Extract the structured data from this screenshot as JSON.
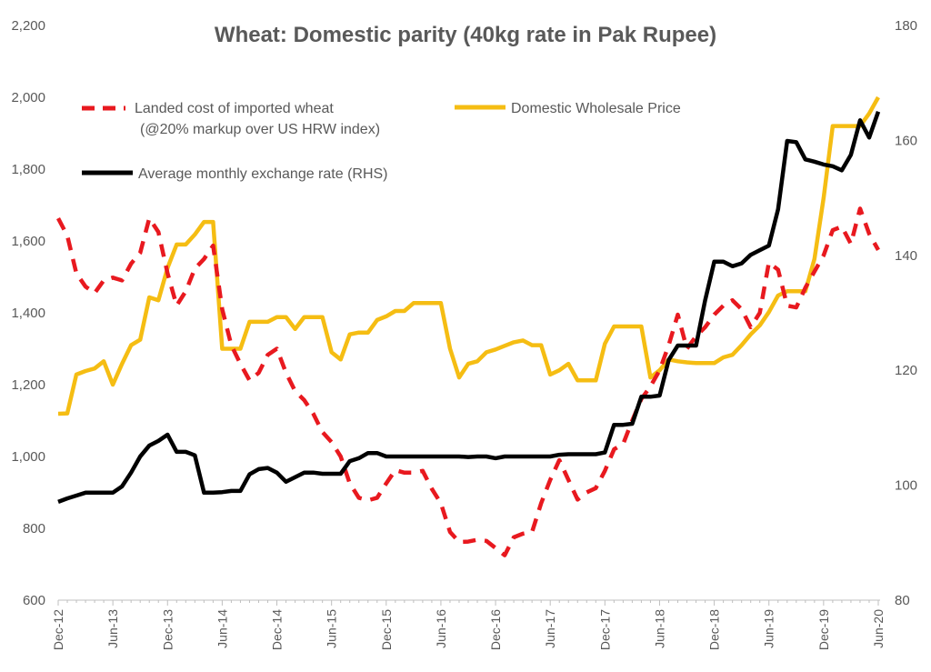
{
  "chart_data": {
    "type": "line",
    "title": "Wheat: Domestic parity (40kg rate in Pak Rupee)",
    "xlabel": "",
    "ylabel": "",
    "ylim": [
      600,
      2200
    ],
    "y2lim": [
      80,
      180
    ],
    "yticks": [
      "600",
      "800",
      "1,000",
      "1,200",
      "1,400",
      "1,600",
      "1,800",
      "2,000",
      "2,200"
    ],
    "y2ticks": [
      "80",
      "100",
      "120",
      "140",
      "160",
      "180"
    ],
    "xticks": [
      "Dec-12",
      "Jun-13",
      "Dec-13",
      "Jun-14",
      "Dec-14",
      "Jun-15",
      "Dec-15",
      "Jun-16",
      "Dec-16",
      "Jun-17",
      "Dec-17",
      "Jun-18",
      "Dec-18",
      "Jun-19",
      "Dec-19",
      "Jun-20"
    ],
    "x_range": [
      "Dec-12",
      "Jun-20"
    ],
    "x_frequency": "monthly",
    "grid": false,
    "legend_placement": "top-left",
    "series": [
      {
        "name": "Landed cost of imported wheat",
        "name_line2": "(@20% markup over US HRW index)",
        "axis": "left",
        "style": "dashed",
        "color": "#e8191f",
        "values": [
          1663,
          1615,
          1510,
          1473,
          1455,
          1490,
          1498,
          1490,
          1537,
          1567,
          1663,
          1625,
          1510,
          1420,
          1460,
          1523,
          1550,
          1587,
          1410,
          1310,
          1258,
          1212,
          1233,
          1283,
          1300,
          1233,
          1182,
          1157,
          1119,
          1068,
          1040,
          1000,
          925,
          885,
          878,
          885,
          925,
          962,
          955,
          955,
          960,
          910,
          870,
          790,
          762,
          763,
          768,
          765,
          745,
          725,
          775,
          785,
          790,
          870,
          935,
          990,
          935,
          880,
          900,
          912,
          960,
          1020,
          1035,
          1100,
          1160,
          1195,
          1240,
          1310,
          1395,
          1300,
          1335,
          1360,
          1395,
          1420,
          1435,
          1410,
          1360,
          1400,
          1540,
          1520,
          1420,
          1415,
          1470,
          1515,
          1560,
          1630,
          1640,
          1592,
          1690,
          1620,
          1575
        ]
      },
      {
        "name": "Domestic Wholesale Price",
        "axis": "left",
        "style": "solid",
        "color": "#f5bd13",
        "values": [
          1119,
          1120,
          1228,
          1238,
          1245,
          1265,
          1200,
          1258,
          1310,
          1325,
          1443,
          1435,
          1525,
          1590,
          1590,
          1618,
          1653,
          1653,
          1300,
          1300,
          1300,
          1375,
          1375,
          1375,
          1388,
          1388,
          1355,
          1388,
          1388,
          1388,
          1290,
          1270,
          1340,
          1345,
          1345,
          1380,
          1390,
          1405,
          1405,
          1427,
          1427,
          1427,
          1427,
          1300,
          1220,
          1258,
          1265,
          1290,
          1298,
          1308,
          1318,
          1323,
          1310,
          1310,
          1228,
          1240,
          1258,
          1212,
          1212,
          1212,
          1314,
          1362,
          1362,
          1362,
          1362,
          1220,
          1240,
          1270,
          1265,
          1262,
          1260,
          1260,
          1260,
          1276,
          1283,
          1310,
          1340,
          1365,
          1402,
          1448,
          1460,
          1460,
          1460,
          1550,
          1720,
          1920,
          1920,
          1920,
          1920,
          1955,
          2000
        ]
      },
      {
        "name": "Average monthly exchange rate (RHS)",
        "axis": "right",
        "style": "solid",
        "color": "#000000",
        "values": [
          97.1,
          97.7,
          98.2,
          98.7,
          98.7,
          98.7,
          98.7,
          99.8,
          102.2,
          105,
          106.9,
          107.7,
          108.8,
          105.8,
          105.8,
          105.2,
          98.7,
          98.7,
          98.8,
          99,
          99,
          101.9,
          102.8,
          103,
          102.2,
          100.6,
          101.4,
          102.2,
          102.2,
          102,
          102,
          102,
          104.2,
          104.7,
          105.6,
          105.6,
          105,
          105,
          105,
          105,
          105,
          105,
          105,
          105,
          105,
          104.9,
          105,
          105,
          104.7,
          105,
          105,
          105,
          105,
          105,
          105,
          105.3,
          105.4,
          105.4,
          105.4,
          105.4,
          105.7,
          110.5,
          110.5,
          110.7,
          115.4,
          115.4,
          115.6,
          121.8,
          124.3,
          124.3,
          124.3,
          132.2,
          138.9,
          138.9,
          138.1,
          138.6,
          140.1,
          140.9,
          141.7,
          148,
          159.9,
          159.7,
          156.7,
          156.3,
          155.8,
          155.5,
          154.8,
          157.5,
          163.5,
          160.5,
          165
        ]
      }
    ]
  }
}
